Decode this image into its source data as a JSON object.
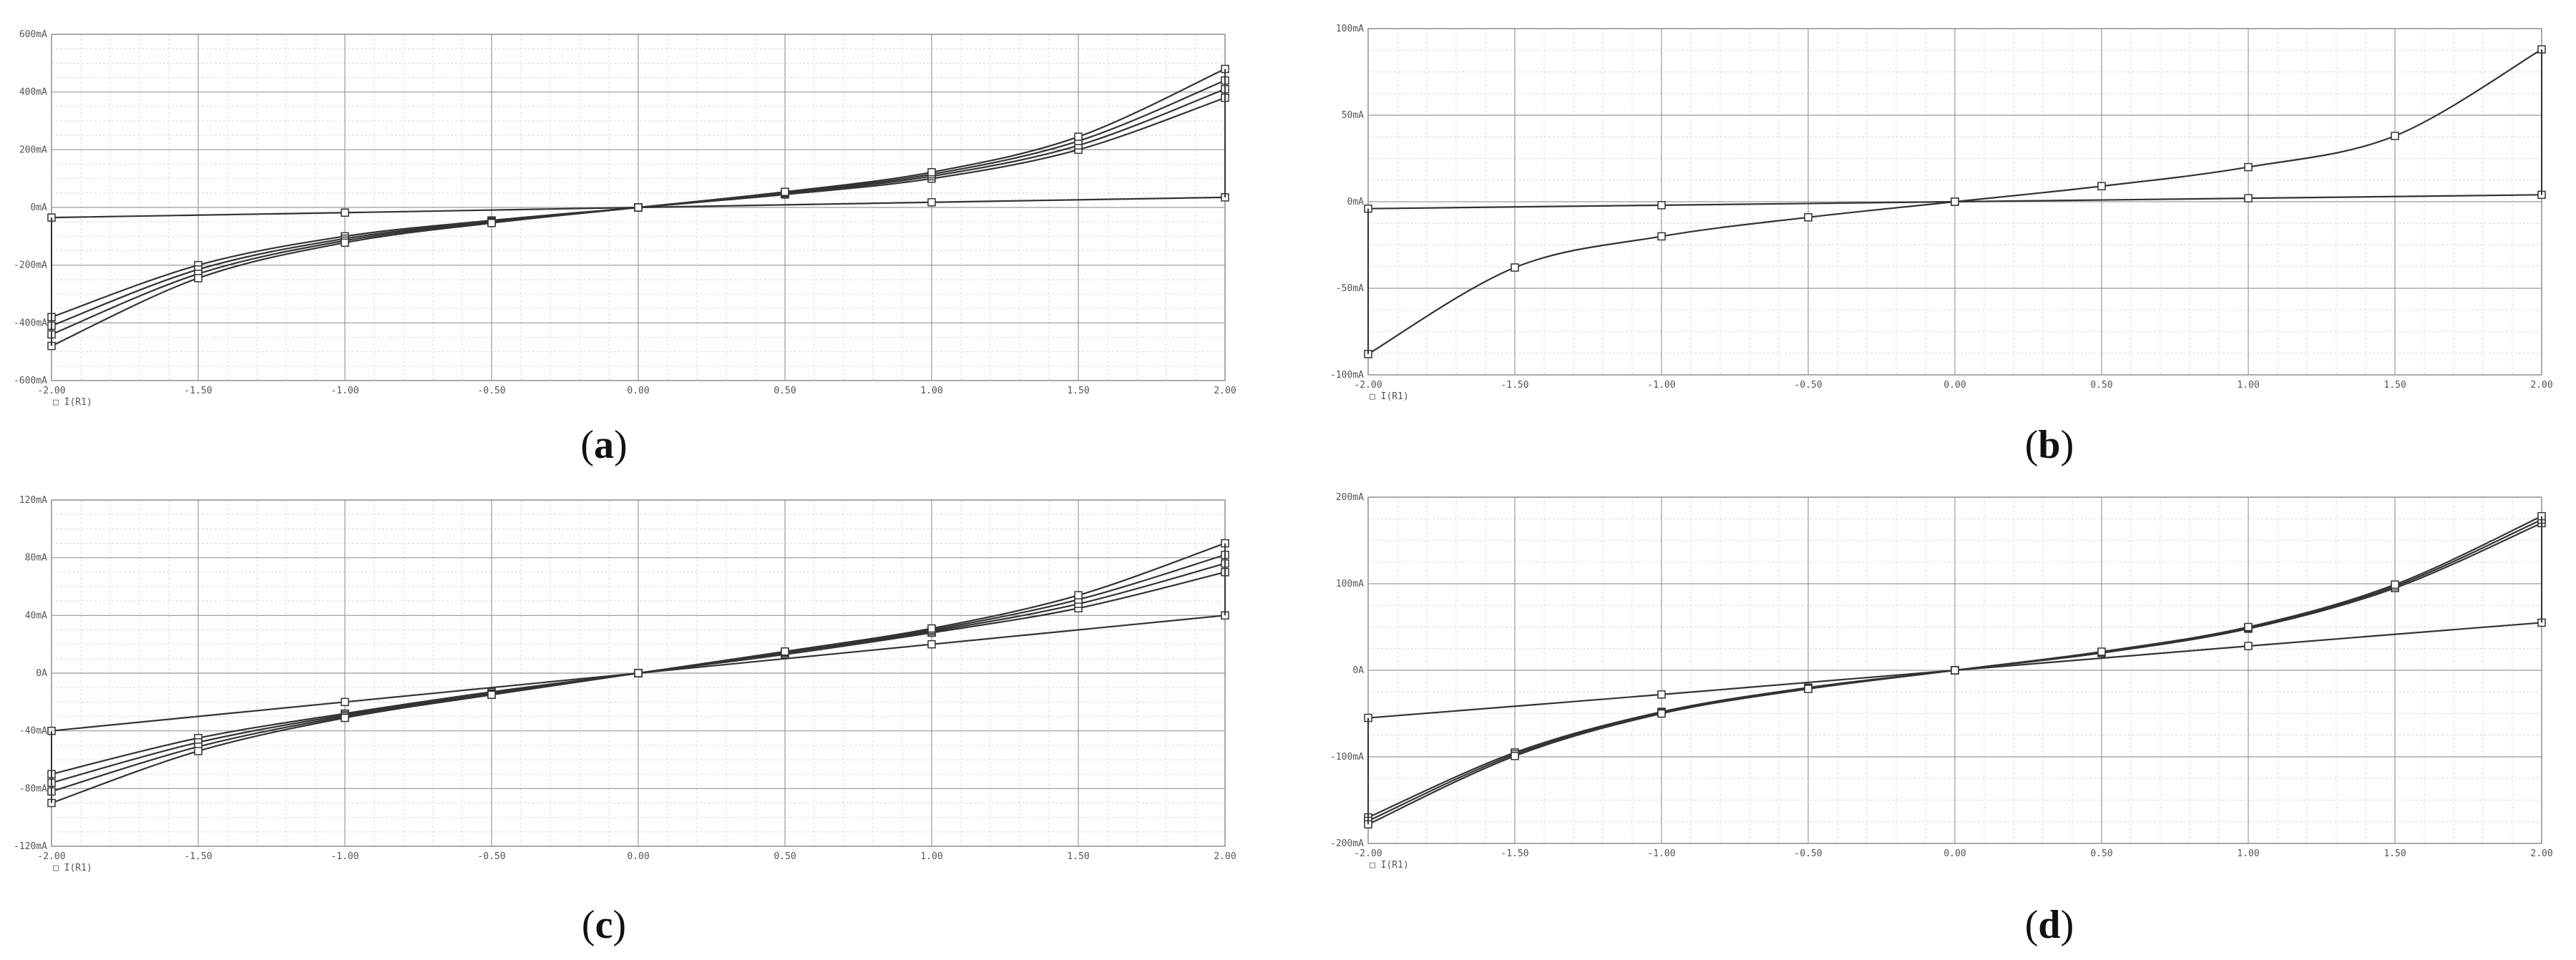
{
  "chart_data": [
    {
      "id": "a",
      "type": "line",
      "caption": "a",
      "x_ticks": [
        "-2.00",
        "-1.50",
        "-1.00",
        "-0.50",
        "0.00",
        "0.50",
        "1.00",
        "1.50",
        "2.00"
      ],
      "y_ticks": [
        "-600mA",
        "-400mA",
        "-200mA",
        "0mA",
        "200mA",
        "400mA",
        "600mA"
      ],
      "xlim": [
        -2,
        2
      ],
      "ylim": [
        -600,
        600
      ],
      "y_unit": "mA",
      "legend": "□ I(R1)",
      "xlabel": "",
      "grid": true,
      "series": [
        {
          "x": [
            -2.0,
            -1.5,
            -1.0,
            -0.5,
            0.0,
            0.5,
            1.0,
            1.5,
            2.0
          ],
          "y": [
            -380,
            -200,
            -100,
            -45,
            0,
            45,
            100,
            200,
            380
          ]
        },
        {
          "x": [
            -2.0,
            -1.5,
            -1.0,
            -0.5,
            0.0,
            0.5,
            1.0,
            1.5,
            2.0
          ],
          "y": [
            -410,
            -215,
            -108,
            -48,
            0,
            48,
            108,
            215,
            410
          ]
        },
        {
          "x": [
            -2.0,
            -1.5,
            -1.0,
            -0.5,
            0.0,
            0.5,
            1.0,
            1.5,
            2.0
          ],
          "y": [
            -440,
            -230,
            -115,
            -51,
            0,
            51,
            115,
            230,
            440
          ]
        },
        {
          "x": [
            -2.0,
            -1.5,
            -1.0,
            -0.5,
            0.0,
            0.5,
            1.0,
            1.5,
            2.0
          ],
          "y": [
            -480,
            -245,
            -122,
            -54,
            0,
            54,
            122,
            245,
            480
          ]
        },
        {
          "x": [
            -2.0,
            -1.0,
            0.0,
            1.0,
            2.0
          ],
          "y": [
            -35,
            -18,
            0,
            18,
            35
          ]
        }
      ]
    },
    {
      "id": "b",
      "type": "line",
      "caption": "b",
      "x_ticks": [
        "-2.00",
        "-1.50",
        "-1.00",
        "-0.50",
        "0.00",
        "0.50",
        "1.00",
        "1.50",
        "2.00"
      ],
      "y_ticks": [
        "-100mA",
        "-50mA",
        "0mA",
        "50mA",
        "100mA"
      ],
      "xlim": [
        -2,
        2
      ],
      "ylim": [
        -100,
        100
      ],
      "y_unit": "mA",
      "legend": "□ I(R1)",
      "xlabel": "",
      "grid": true,
      "series": [
        {
          "x": [
            -2.0,
            -1.5,
            -1.0,
            -0.5,
            0.0,
            0.5,
            1.0,
            1.5,
            2.0
          ],
          "y": [
            -88,
            -38,
            -20,
            -9,
            0,
            9,
            20,
            38,
            88
          ]
        },
        {
          "x": [
            -2.0,
            -1.0,
            0.0,
            1.0,
            2.0
          ],
          "y": [
            -4,
            -2,
            0,
            2,
            4
          ]
        }
      ]
    },
    {
      "id": "c",
      "type": "line",
      "caption": "c",
      "x_ticks": [
        "-2.00",
        "-1.50",
        "-1.00",
        "-0.50",
        "0.00",
        "0.50",
        "1.00",
        "1.50",
        "2.00"
      ],
      "y_ticks": [
        "-120mA",
        "-80mA",
        "-40mA",
        "0A",
        "40mA",
        "80mA",
        "120mA"
      ],
      "xlim": [
        -2,
        2
      ],
      "ylim": [
        -120,
        120
      ],
      "y_unit": "mA",
      "legend": "□ I(R1)",
      "xlabel": "",
      "grid": true,
      "series": [
        {
          "x": [
            -2.0,
            -1.5,
            -1.0,
            -0.5,
            0.0,
            0.5,
            1.0,
            1.5,
            2.0
          ],
          "y": [
            -70,
            -45,
            -28,
            -13,
            0,
            13,
            28,
            45,
            70
          ]
        },
        {
          "x": [
            -2.0,
            -1.5,
            -1.0,
            -0.5,
            0.0,
            0.5,
            1.0,
            1.5,
            2.0
          ],
          "y": [
            -76,
            -48,
            -29,
            -14,
            0,
            14,
            29,
            48,
            76
          ]
        },
        {
          "x": [
            -2.0,
            -1.5,
            -1.0,
            -0.5,
            0.0,
            0.5,
            1.0,
            1.5,
            2.0
          ],
          "y": [
            -82,
            -51,
            -30,
            -14.5,
            0,
            14.5,
            30,
            51,
            82
          ]
        },
        {
          "x": [
            -2.0,
            -1.5,
            -1.0,
            -0.5,
            0.0,
            0.5,
            1.0,
            1.5,
            2.0
          ],
          "y": [
            -90,
            -54,
            -31,
            -15,
            0,
            15,
            31,
            54,
            90
          ]
        },
        {
          "x": [
            -2.0,
            -1.0,
            0.0,
            1.0,
            2.0
          ],
          "y": [
            -40,
            -20,
            0,
            20,
            40
          ]
        }
      ]
    },
    {
      "id": "d",
      "type": "line",
      "caption": "d",
      "x_ticks": [
        "-2.00",
        "-1.50",
        "-1.00",
        "-0.50",
        "0.00",
        "0.50",
        "1.00",
        "1.50",
        "2.00"
      ],
      "y_ticks": [
        "-200mA",
        "-100mA",
        "0A",
        "100mA",
        "200mA"
      ],
      "xlim": [
        -2,
        2
      ],
      "ylim": [
        -200,
        200
      ],
      "y_unit": "mA",
      "legend": "□ I(R1)",
      "xlabel": "",
      "grid": true,
      "series": [
        {
          "x": [
            -2.0,
            -1.5,
            -1.0,
            -0.5,
            0.0,
            0.5,
            1.0,
            1.5,
            2.0
          ],
          "y": [
            -170,
            -95,
            -48,
            -20,
            0,
            20,
            48,
            95,
            170
          ]
        },
        {
          "x": [
            -2.0,
            -1.5,
            -1.0,
            -0.5,
            0.0,
            0.5,
            1.0,
            1.5,
            2.0
          ],
          "y": [
            -174,
            -97,
            -49,
            -21,
            0,
            21,
            49,
            97,
            174
          ]
        },
        {
          "x": [
            -2.0,
            -1.5,
            -1.0,
            -0.5,
            0.0,
            0.5,
            1.0,
            1.5,
            2.0
          ],
          "y": [
            -178,
            -99,
            -50,
            -21.5,
            0,
            21.5,
            50,
            99,
            178
          ]
        },
        {
          "x": [
            -2.0,
            -1.0,
            0.0,
            1.0,
            2.0
          ],
          "y": [
            -55,
            -28,
            0,
            28,
            55
          ]
        }
      ]
    }
  ]
}
